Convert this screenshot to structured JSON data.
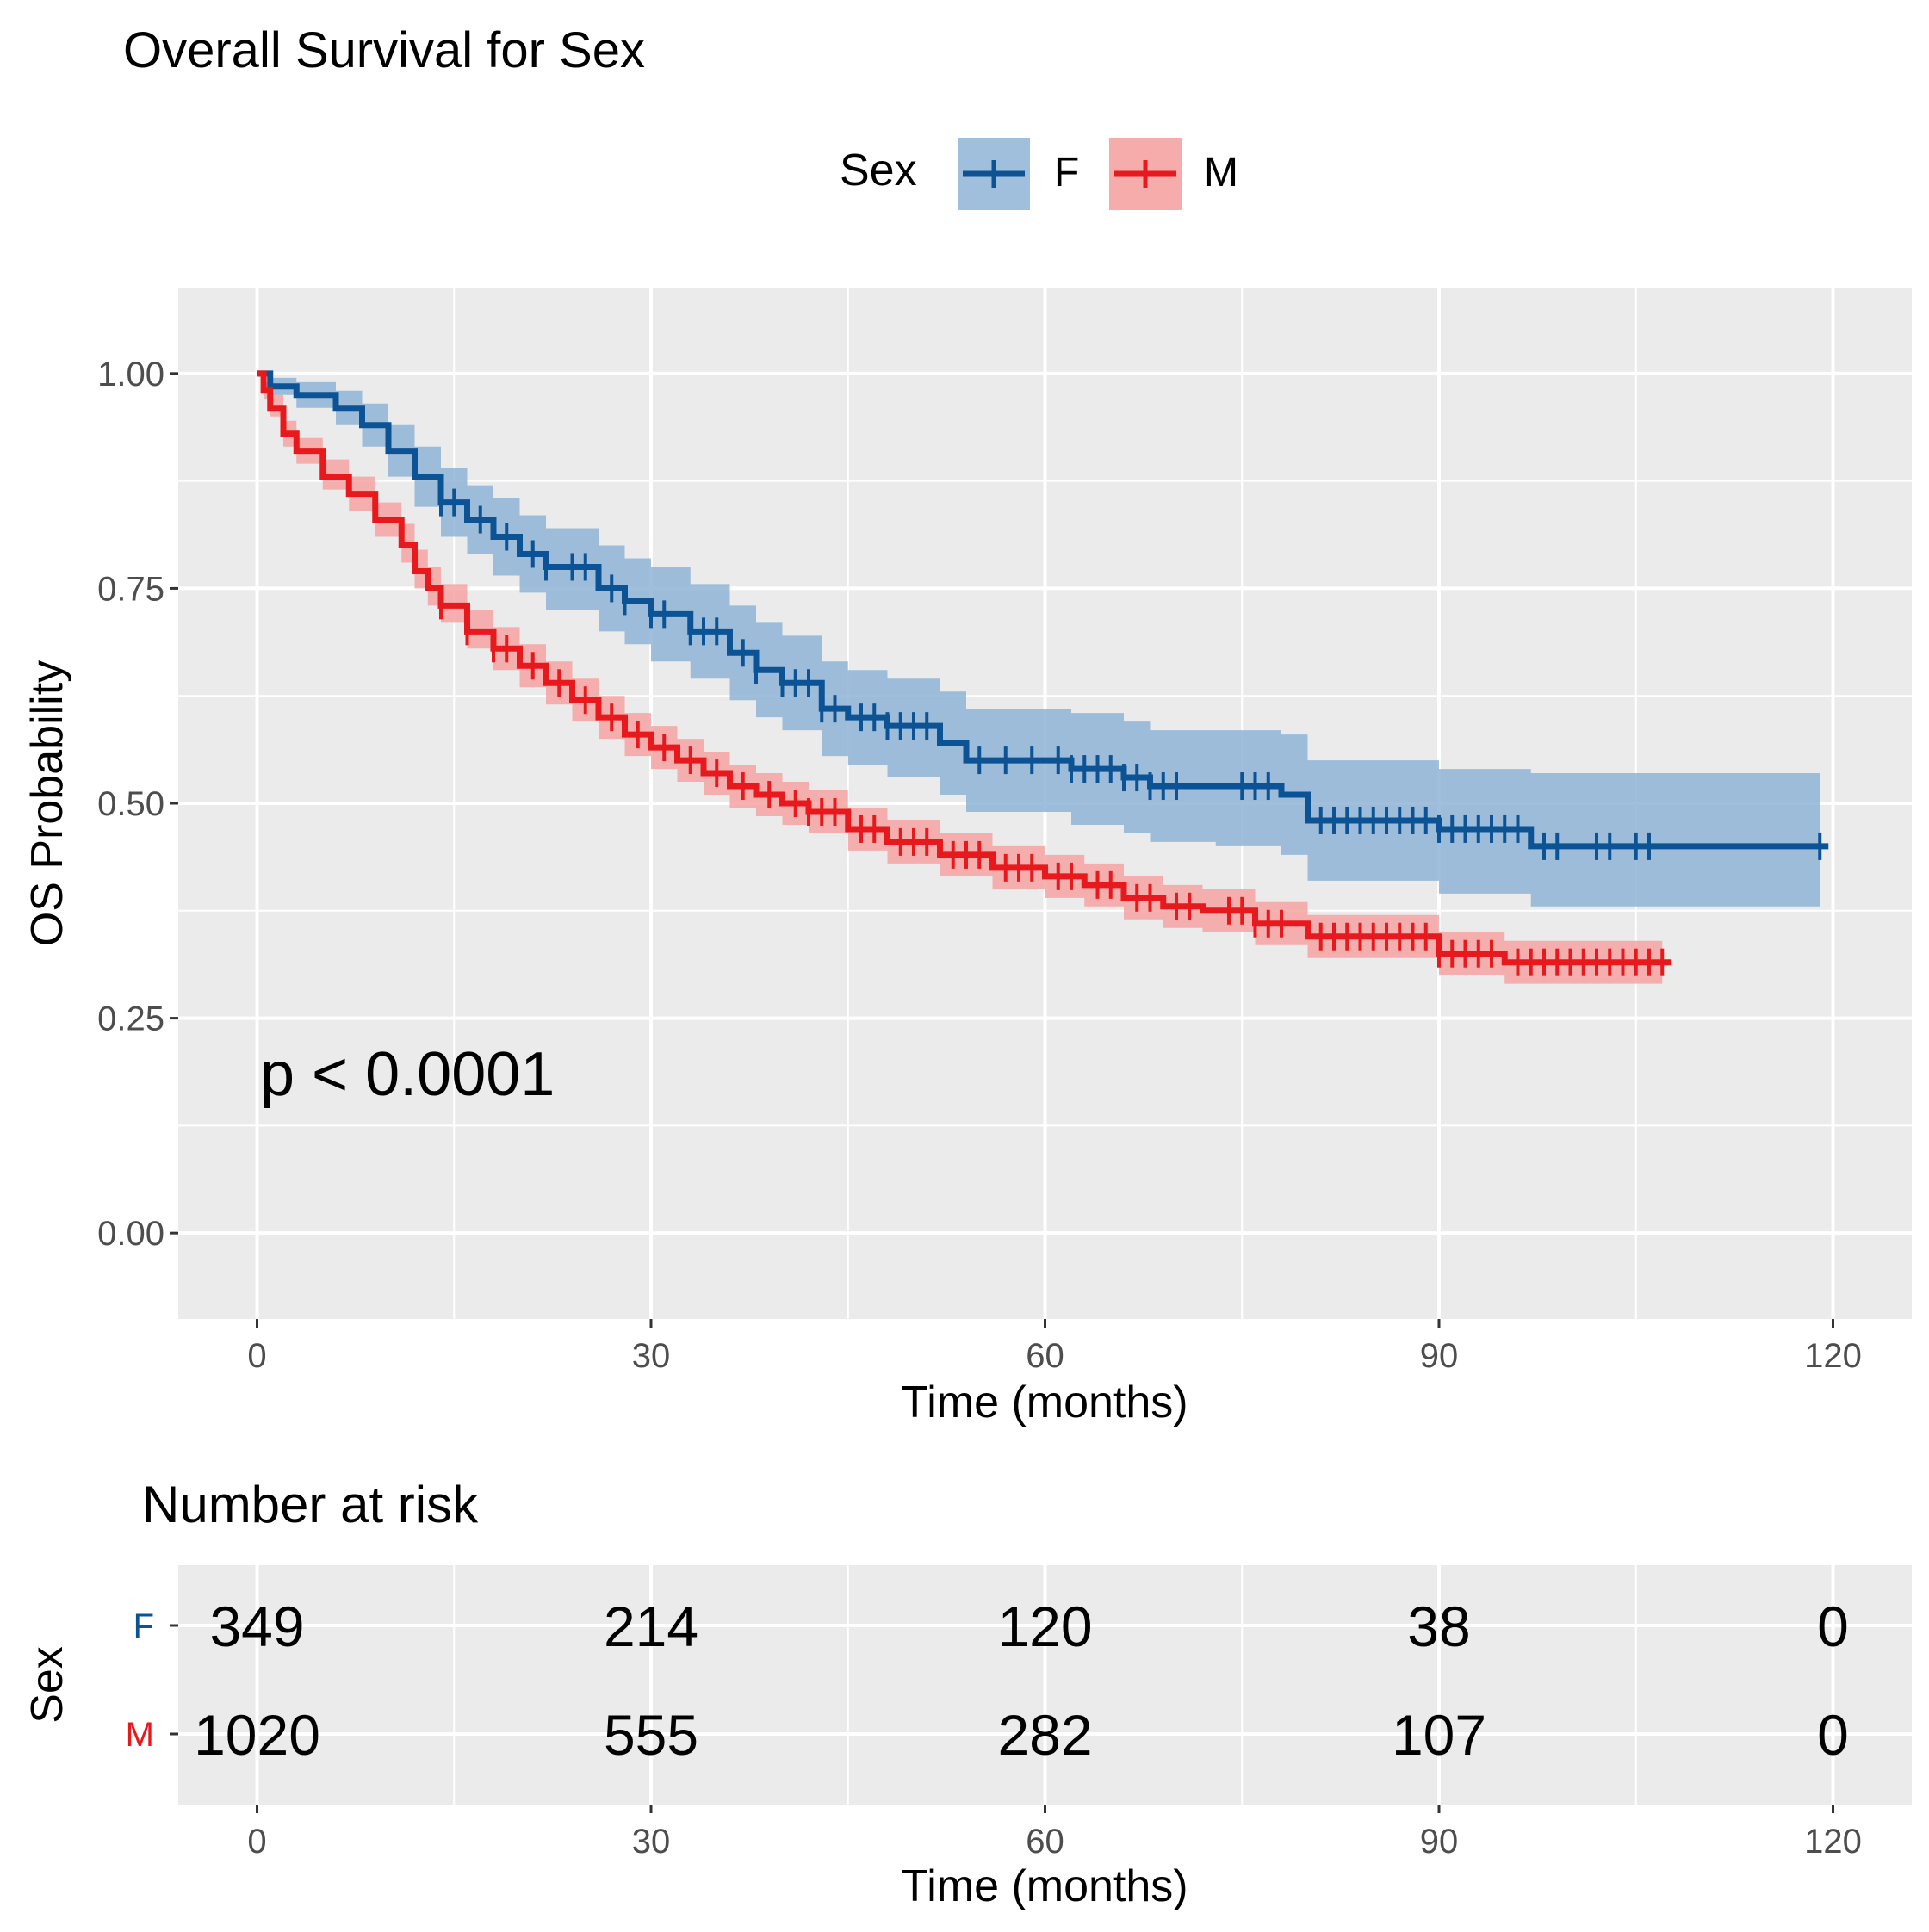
{
  "chart_data": {
    "type": "line",
    "title": "Overall Survival for Sex",
    "xlabel": "Time (months)",
    "ylabel": "OS Probability",
    "xlim": [
      -6,
      126
    ],
    "ylim": [
      -0.1,
      1.1
    ],
    "x_ticks": [
      0,
      30,
      60,
      90,
      120
    ],
    "x_tick_labels": [
      "0",
      "30",
      "60",
      "90",
      "120"
    ],
    "y_ticks": [
      0,
      0.25,
      0.5,
      0.75,
      1.0
    ],
    "y_tick_labels": [
      "0.00",
      "0.25",
      "0.50",
      "0.75",
      "1.00"
    ],
    "grid": true,
    "legend": {
      "title": "Sex",
      "position": "top",
      "labels": [
        "F",
        "M"
      ]
    },
    "annotation": "p < 0.0001",
    "colors": {
      "F": "#0b5394",
      "M": "#e8191c",
      "F_band": "#8fb4d6",
      "M_band": "#f6a3a3",
      "panel": "#ebebeb",
      "grid": "#ffffff",
      "axis_text": "#4d4d4d"
    },
    "series": [
      {
        "name": "F",
        "x": [
          0,
          1,
          3,
          6,
          8,
          10,
          12,
          14,
          16,
          18,
          20,
          22,
          26,
          28,
          30,
          33,
          36,
          38,
          40,
          43,
          45,
          48,
          52,
          54,
          58,
          62,
          66,
          68,
          73,
          78,
          80,
          90,
          97,
          119
        ],
        "y": [
          1.0,
          0.985,
          0.975,
          0.96,
          0.94,
          0.91,
          0.88,
          0.85,
          0.83,
          0.81,
          0.79,
          0.775,
          0.75,
          0.735,
          0.72,
          0.7,
          0.675,
          0.655,
          0.64,
          0.61,
          0.6,
          0.59,
          0.57,
          0.55,
          0.55,
          0.54,
          0.53,
          0.52,
          0.52,
          0.51,
          0.48,
          0.47,
          0.45,
          0.45
        ],
        "lower": [
          1.0,
          0.975,
          0.96,
          0.94,
          0.915,
          0.88,
          0.845,
          0.81,
          0.79,
          0.765,
          0.745,
          0.725,
          0.7,
          0.685,
          0.665,
          0.645,
          0.62,
          0.6,
          0.585,
          0.555,
          0.545,
          0.53,
          0.51,
          0.49,
          0.49,
          0.475,
          0.465,
          0.455,
          0.45,
          0.44,
          0.41,
          0.395,
          0.38,
          0.38
        ],
        "upper": [
          1.0,
          0.995,
          0.99,
          0.98,
          0.965,
          0.94,
          0.915,
          0.89,
          0.87,
          0.855,
          0.835,
          0.82,
          0.8,
          0.785,
          0.775,
          0.755,
          0.73,
          0.71,
          0.695,
          0.665,
          0.655,
          0.645,
          0.63,
          0.61,
          0.61,
          0.605,
          0.595,
          0.585,
          0.585,
          0.58,
          0.55,
          0.54,
          0.535,
          0.535
        ],
        "censor_x": [
          14,
          15,
          17,
          19,
          21,
          22,
          24,
          25,
          27,
          28,
          30,
          31,
          33,
          34,
          35,
          37,
          38,
          40,
          41,
          42,
          43,
          44,
          46,
          47,
          48,
          49,
          50,
          51,
          55,
          57,
          59,
          61,
          62,
          63,
          64,
          65,
          66,
          67,
          68,
          69,
          70,
          75,
          76,
          77,
          81,
          82,
          83,
          84,
          85,
          86,
          87,
          88,
          89,
          90,
          91,
          92,
          93,
          94,
          95,
          96,
          98,
          99,
          102,
          103,
          105,
          106,
          119
        ]
      },
      {
        "name": "M",
        "x": [
          0,
          0.5,
          1,
          2,
          3,
          5,
          7,
          9,
          11,
          12,
          13,
          14,
          16,
          18,
          20,
          22,
          24,
          26,
          28,
          30,
          32,
          34,
          36,
          38,
          40,
          42,
          45,
          48,
          52,
          56,
          60,
          63,
          66,
          69,
          72,
          76,
          80,
          90,
          95,
          107
        ],
        "y": [
          1.0,
          0.98,
          0.96,
          0.93,
          0.91,
          0.88,
          0.86,
          0.83,
          0.8,
          0.77,
          0.75,
          0.73,
          0.7,
          0.68,
          0.66,
          0.64,
          0.62,
          0.6,
          0.58,
          0.565,
          0.55,
          0.535,
          0.52,
          0.51,
          0.5,
          0.49,
          0.47,
          0.455,
          0.44,
          0.425,
          0.415,
          0.405,
          0.39,
          0.38,
          0.375,
          0.36,
          0.345,
          0.325,
          0.315,
          0.315
        ],
        "lower": [
          1.0,
          0.97,
          0.95,
          0.915,
          0.895,
          0.865,
          0.84,
          0.81,
          0.78,
          0.75,
          0.73,
          0.71,
          0.68,
          0.655,
          0.635,
          0.615,
          0.595,
          0.575,
          0.555,
          0.54,
          0.525,
          0.51,
          0.495,
          0.485,
          0.475,
          0.465,
          0.445,
          0.43,
          0.415,
          0.4,
          0.39,
          0.38,
          0.365,
          0.355,
          0.35,
          0.335,
          0.32,
          0.3,
          0.29,
          0.29
        ],
        "upper": [
          1.0,
          0.99,
          0.975,
          0.945,
          0.925,
          0.9,
          0.88,
          0.85,
          0.825,
          0.795,
          0.775,
          0.755,
          0.725,
          0.705,
          0.685,
          0.665,
          0.645,
          0.625,
          0.605,
          0.59,
          0.575,
          0.56,
          0.545,
          0.535,
          0.525,
          0.515,
          0.495,
          0.48,
          0.465,
          0.45,
          0.44,
          0.43,
          0.415,
          0.405,
          0.4,
          0.385,
          0.37,
          0.35,
          0.34,
          0.34
        ],
        "censor_x": [
          14,
          16,
          18,
          19,
          21,
          23,
          25,
          27,
          29,
          31,
          33,
          35,
          37,
          39,
          41,
          42,
          43,
          44,
          46,
          47,
          49,
          50,
          51,
          53,
          54,
          55,
          57,
          58,
          59,
          61,
          62,
          64,
          65,
          67,
          68,
          70,
          71,
          74,
          75,
          76,
          77,
          78,
          81,
          82,
          83,
          84,
          85,
          86,
          87,
          88,
          89,
          90,
          91,
          92,
          93,
          94,
          96,
          97,
          98,
          99,
          100,
          101,
          102,
          103,
          104,
          105,
          106,
          107
        ]
      }
    ],
    "risk_table": {
      "title": "Number at risk",
      "ylabel": "Sex",
      "xlabel": "Time (months)",
      "times": [
        0,
        30,
        60,
        90,
        120
      ],
      "rows": [
        {
          "label": "F",
          "counts": [
            "349",
            "214",
            "120",
            "38",
            "0"
          ]
        },
        {
          "label": "M",
          "counts": [
            "1020",
            "555",
            "282",
            "107",
            "0"
          ]
        }
      ]
    }
  }
}
